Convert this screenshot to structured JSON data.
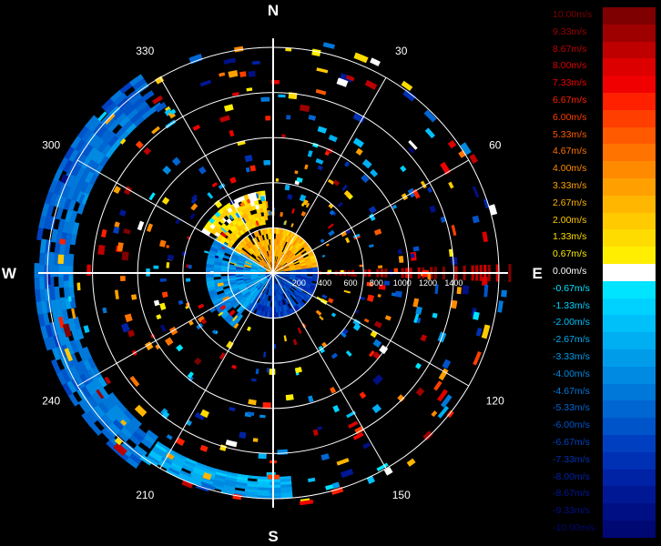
{
  "chart_data": {
    "type": "polar-ppi",
    "compass": {
      "north": "N",
      "east": "E",
      "south": "S",
      "west": "W"
    },
    "azimuth_labels": [
      {
        "az": 30,
        "label": "30"
      },
      {
        "az": 60,
        "label": "60"
      },
      {
        "az": 120,
        "label": "120"
      },
      {
        "az": 150,
        "label": "150"
      },
      {
        "az": 210,
        "label": "210"
      },
      {
        "az": 240,
        "label": "240"
      },
      {
        "az": 300,
        "label": "300"
      },
      {
        "az": 330,
        "label": "330"
      }
    ],
    "max_range": 1750,
    "range_rings": [
      350,
      700,
      1050,
      1400,
      1750
    ],
    "range_labels": [
      "200",
      "400",
      "600",
      "800",
      "1000",
      "1200",
      "1400"
    ],
    "velocity_unit": "m/s",
    "legend": [
      {
        "label": "10.00m/s",
        "value": 10.0,
        "color": "#7f0000"
      },
      {
        "label": "9.33m/s",
        "value": 9.33,
        "color": "#9e0000"
      },
      {
        "label": "8.67m/s",
        "value": 8.67,
        "color": "#be0000"
      },
      {
        "label": "8.00m/s",
        "value": 8.0,
        "color": "#dc0000"
      },
      {
        "label": "7.33m/s",
        "value": 7.33,
        "color": "#f00000"
      },
      {
        "label": "6.67m/s",
        "value": 6.67,
        "color": "#ff2000"
      },
      {
        "label": "6.00m/s",
        "value": 6.0,
        "color": "#ff3e00"
      },
      {
        "label": "5.33m/s",
        "value": 5.33,
        "color": "#ff5a00"
      },
      {
        "label": "4.67m/s",
        "value": 4.67,
        "color": "#ff7300"
      },
      {
        "label": "4.00m/s",
        "value": 4.0,
        "color": "#ff8a00"
      },
      {
        "label": "3.33m/s",
        "value": 3.33,
        "color": "#ffa000"
      },
      {
        "label": "2.67m/s",
        "value": 2.67,
        "color": "#ffb600"
      },
      {
        "label": "2.00m/s",
        "value": 2.0,
        "color": "#ffca00"
      },
      {
        "label": "1.33m/s",
        "value": 1.33,
        "color": "#ffdc00"
      },
      {
        "label": "0.67m/s",
        "value": 0.67,
        "color": "#ffee00"
      },
      {
        "label": "0.00m/s",
        "value": 0.0,
        "color": "#ffffff"
      },
      {
        "label": "-0.67m/s",
        "value": -0.67,
        "color": "#00e4ff"
      },
      {
        "label": "-1.33m/s",
        "value": -1.33,
        "color": "#00d2ff"
      },
      {
        "label": "-2.00m/s",
        "value": -2.0,
        "color": "#00c0fa"
      },
      {
        "label": "-2.67m/s",
        "value": -2.67,
        "color": "#00aef2"
      },
      {
        "label": "-3.33m/s",
        "value": -3.33,
        "color": "#009cea"
      },
      {
        "label": "-4.00m/s",
        "value": -4.0,
        "color": "#008ae2"
      },
      {
        "label": "-4.67m/s",
        "value": -4.67,
        "color": "#0078da"
      },
      {
        "label": "-5.33m/s",
        "value": -5.33,
        "color": "#0066d2"
      },
      {
        "label": "-6.00m/s",
        "value": -6.0,
        "color": "#0054ca"
      },
      {
        "label": "-6.67m/s",
        "value": -6.67,
        "color": "#0040c0"
      },
      {
        "label": "-7.33m/s",
        "value": -7.33,
        "color": "#0030b4"
      },
      {
        "label": "-8.00m/s",
        "value": -8.0,
        "color": "#0022a4"
      },
      {
        "label": "-8.67m/s",
        "value": -8.67,
        "color": "#001894"
      },
      {
        "label": "-9.33m/s",
        "value": -9.33,
        "color": "#001084"
      },
      {
        "label": "-10.00m/s",
        "value": -10.0,
        "color": "#000874"
      }
    ],
    "regions": [
      {
        "name": "near-core-south",
        "az": [
          80,
          280
        ],
        "r": [
          0,
          350
        ],
        "v": -6.0
      },
      {
        "name": "near-core-north",
        "az": [
          -80,
          80
        ],
        "r": [
          0,
          350
        ],
        "v": 3.5
      },
      {
        "name": "west-sector-mid",
        "az": [
          215,
          300
        ],
        "r": [
          60,
          520
        ],
        "v": -3.0
      },
      {
        "name": "northwest-band",
        "az": [
          300,
          352
        ],
        "r": [
          380,
          640
        ],
        "v": 1.8
      },
      {
        "name": "west-outer-arc",
        "az": [
          215,
          325
        ],
        "r": [
          1550,
          1850
        ],
        "v": -4.5
      },
      {
        "name": "south-outer",
        "az": [
          175,
          212
        ],
        "r": [
          1580,
          1750
        ],
        "v": -2.5
      }
    ],
    "east-line": {
      "az": 90,
      "r": [
        320,
        1850
      ],
      "v": 9.0
    }
  }
}
